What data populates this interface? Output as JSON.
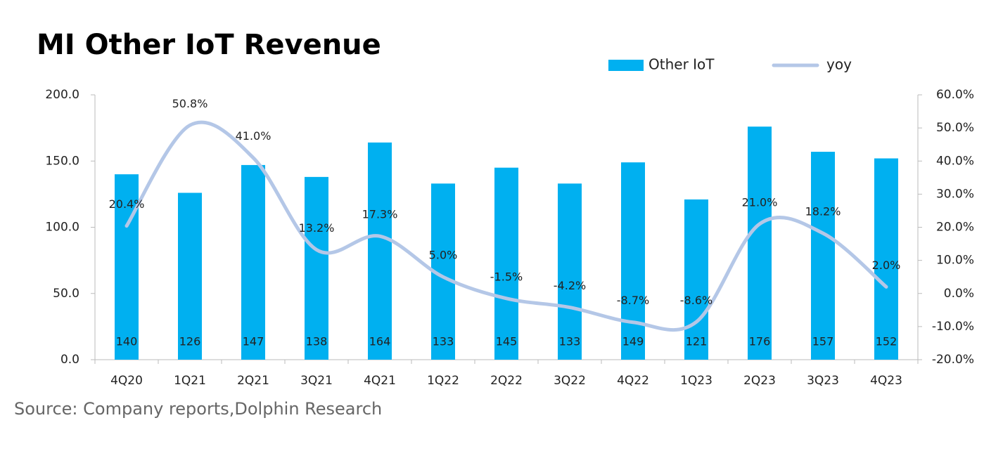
{
  "chart_data": {
    "type": "bar",
    "title": "MI Other IoT Revenue",
    "source": "Source: Company reports,Dolphin Research",
    "categories": [
      "4Q20",
      "1Q21",
      "2Q21",
      "3Q21",
      "4Q21",
      "1Q22",
      "2Q22",
      "3Q22",
      "4Q22",
      "1Q23",
      "2Q23",
      "3Q23",
      "4Q23"
    ],
    "series": [
      {
        "name": "Other IoT",
        "type": "bar",
        "color": "#00b0f0",
        "values": [
          140,
          126,
          147,
          138,
          164,
          133,
          145,
          133,
          149,
          121,
          176,
          157,
          152
        ]
      },
      {
        "name": "yoy",
        "type": "line",
        "axis": "y2",
        "color": "#b4c7e7",
        "values": [
          20.4,
          50.8,
          41.0,
          13.2,
          17.3,
          5.0,
          -1.5,
          -4.2,
          -8.7,
          -8.6,
          21.0,
          18.2,
          2.0
        ],
        "value_labels": [
          "20.4%",
          "50.8%",
          "41.0%",
          "13.2%",
          "17.3%",
          "5.0%",
          "-1.5%",
          "-4.2%",
          "-8.7%",
          "-8.6%",
          "21.0%",
          "18.2%",
          "2.0%"
        ]
      }
    ],
    "ylim": [
      0,
      200
    ],
    "yticks": [
      {
        "value": 0,
        "label": "0.0"
      },
      {
        "value": 50,
        "label": "50.0"
      },
      {
        "value": 100,
        "label": "100.0"
      },
      {
        "value": 150,
        "label": "150.0"
      },
      {
        "value": 200,
        "label": "200.0"
      }
    ],
    "y2lim": [
      -20,
      60
    ],
    "y2ticks": [
      {
        "value": -20,
        "label": "-20.0%"
      },
      {
        "value": -10,
        "label": "-10.0%"
      },
      {
        "value": 0,
        "label": "0.0%"
      },
      {
        "value": 10,
        "label": "10.0%"
      },
      {
        "value": 20,
        "label": "20.0%"
      },
      {
        "value": 30,
        "label": "30.0%"
      },
      {
        "value": 40,
        "label": "40.0%"
      },
      {
        "value": 50,
        "label": "50.0%"
      },
      {
        "value": 60,
        "label": "60.0%"
      }
    ],
    "legend": "top-right",
    "grid": false
  }
}
